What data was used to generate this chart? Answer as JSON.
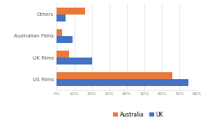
{
  "categories": [
    "US Films",
    "UK Films",
    "Australian Films",
    "Others"
  ],
  "australia": [
    66,
    7,
    3,
    16
  ],
  "uk": [
    75,
    20,
    9,
    5
  ],
  "australia_color": "#E8793A",
  "uk_color": "#4472C4",
  "xlim": [
    0,
    80
  ],
  "xticks": [
    0,
    10,
    20,
    30,
    40,
    50,
    60,
    70,
    80
  ],
  "legend_labels": [
    "Australia",
    "UK"
  ],
  "background_color": "#ffffff",
  "grid_color": "#d9d9d9",
  "bar_height": 0.32,
  "figsize": [
    2.91,
    1.73
  ],
  "dpi": 100
}
